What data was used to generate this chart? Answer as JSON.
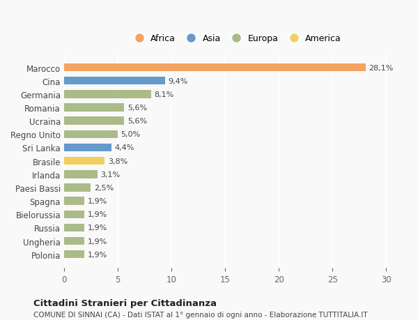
{
  "categories": [
    "Marocco",
    "Cina",
    "Germania",
    "Romania",
    "Ucraina",
    "Regno Unito",
    "Sri Lanka",
    "Brasile",
    "Irlanda",
    "Paesi Bassi",
    "Spagna",
    "Bielorussia",
    "Russia",
    "Ungheria",
    "Polonia"
  ],
  "values": [
    28.1,
    9.4,
    8.1,
    5.6,
    5.6,
    5.0,
    4.4,
    3.8,
    3.1,
    2.5,
    1.9,
    1.9,
    1.9,
    1.9,
    1.9
  ],
  "labels": [
    "28,1%",
    "9,4%",
    "8,1%",
    "5,6%",
    "5,6%",
    "5,0%",
    "4,4%",
    "3,8%",
    "3,1%",
    "2,5%",
    "1,9%",
    "1,9%",
    "1,9%",
    "1,9%",
    "1,9%"
  ],
  "continents": [
    "Africa",
    "Asia",
    "Europa",
    "Europa",
    "Europa",
    "Europa",
    "Asia",
    "America",
    "Europa",
    "Europa",
    "Europa",
    "Europa",
    "Europa",
    "Europa",
    "Europa"
  ],
  "colors": {
    "Africa": "#F4A460",
    "Asia": "#6699CC",
    "Europa": "#AABB88",
    "America": "#F0D060"
  },
  "legend_order": [
    "Africa",
    "Asia",
    "Europa",
    "America"
  ],
  "xlim": [
    0,
    32
  ],
  "xticks": [
    0,
    5,
    10,
    15,
    20,
    25,
    30
  ],
  "title1": "Cittadini Stranieri per Cittadinanza",
  "title2": "COMUNE DI SINNAI (CA) - Dati ISTAT al 1° gennaio di ogni anno - Elaborazione TUTTITALIA.IT",
  "background_color": "#f9f9f9",
  "grid_color": "#ffffff"
}
